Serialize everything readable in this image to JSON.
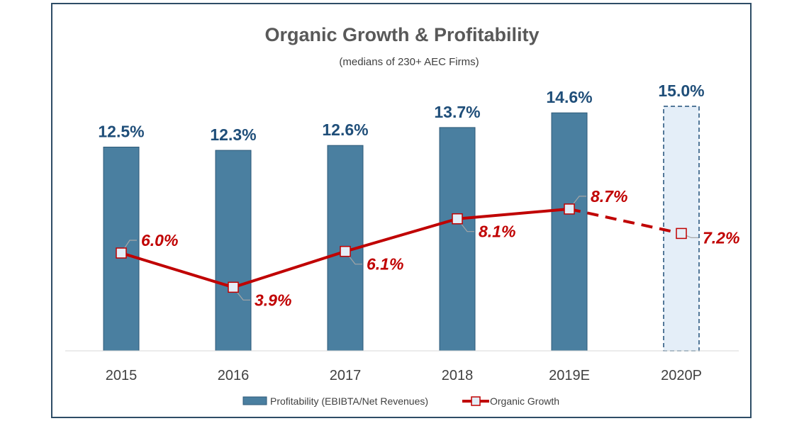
{
  "chart_data": {
    "type": "bar+line",
    "title": "Organic Growth & Profitability",
    "subtitle": "(medians of 230+ AEC Firms)",
    "categories": [
      "2015",
      "2016",
      "2017",
      "2018",
      "2019E",
      "2020P"
    ],
    "series": [
      {
        "name": "Profitability (EBIBTA/Net Revenues)",
        "type": "bar",
        "values": [
          12.5,
          12.3,
          12.6,
          13.7,
          14.6,
          15.0
        ],
        "labels": [
          "12.5%",
          "12.3%",
          "12.6%",
          "13.7%",
          "14.6%",
          "15.0%"
        ],
        "color": "#4a7fa0",
        "projected_color": "#e4eef8"
      },
      {
        "name": "Organic Growth",
        "type": "line",
        "values": [
          6.0,
          3.9,
          6.1,
          8.1,
          8.7,
          7.2
        ],
        "labels": [
          "6.0%",
          "3.9%",
          "6.1%",
          "8.1%",
          "8.7%",
          "7.2%"
        ],
        "color": "#c00000"
      }
    ],
    "projected_last": true,
    "ylim": [
      0,
      16
    ],
    "grid": false,
    "legend": "bottom"
  }
}
